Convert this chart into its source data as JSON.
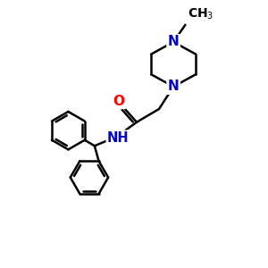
{
  "background_color": "#ffffff",
  "bond_color": "#000000",
  "nitrogen_color": "#0000cc",
  "oxygen_color": "#ff0000",
  "line_width": 1.8,
  "font_size_atom": 11,
  "fig_size": [
    3.0,
    3.0
  ],
  "dpi": 100,
  "xlim": [
    0,
    10
  ],
  "ylim": [
    0,
    10
  ]
}
